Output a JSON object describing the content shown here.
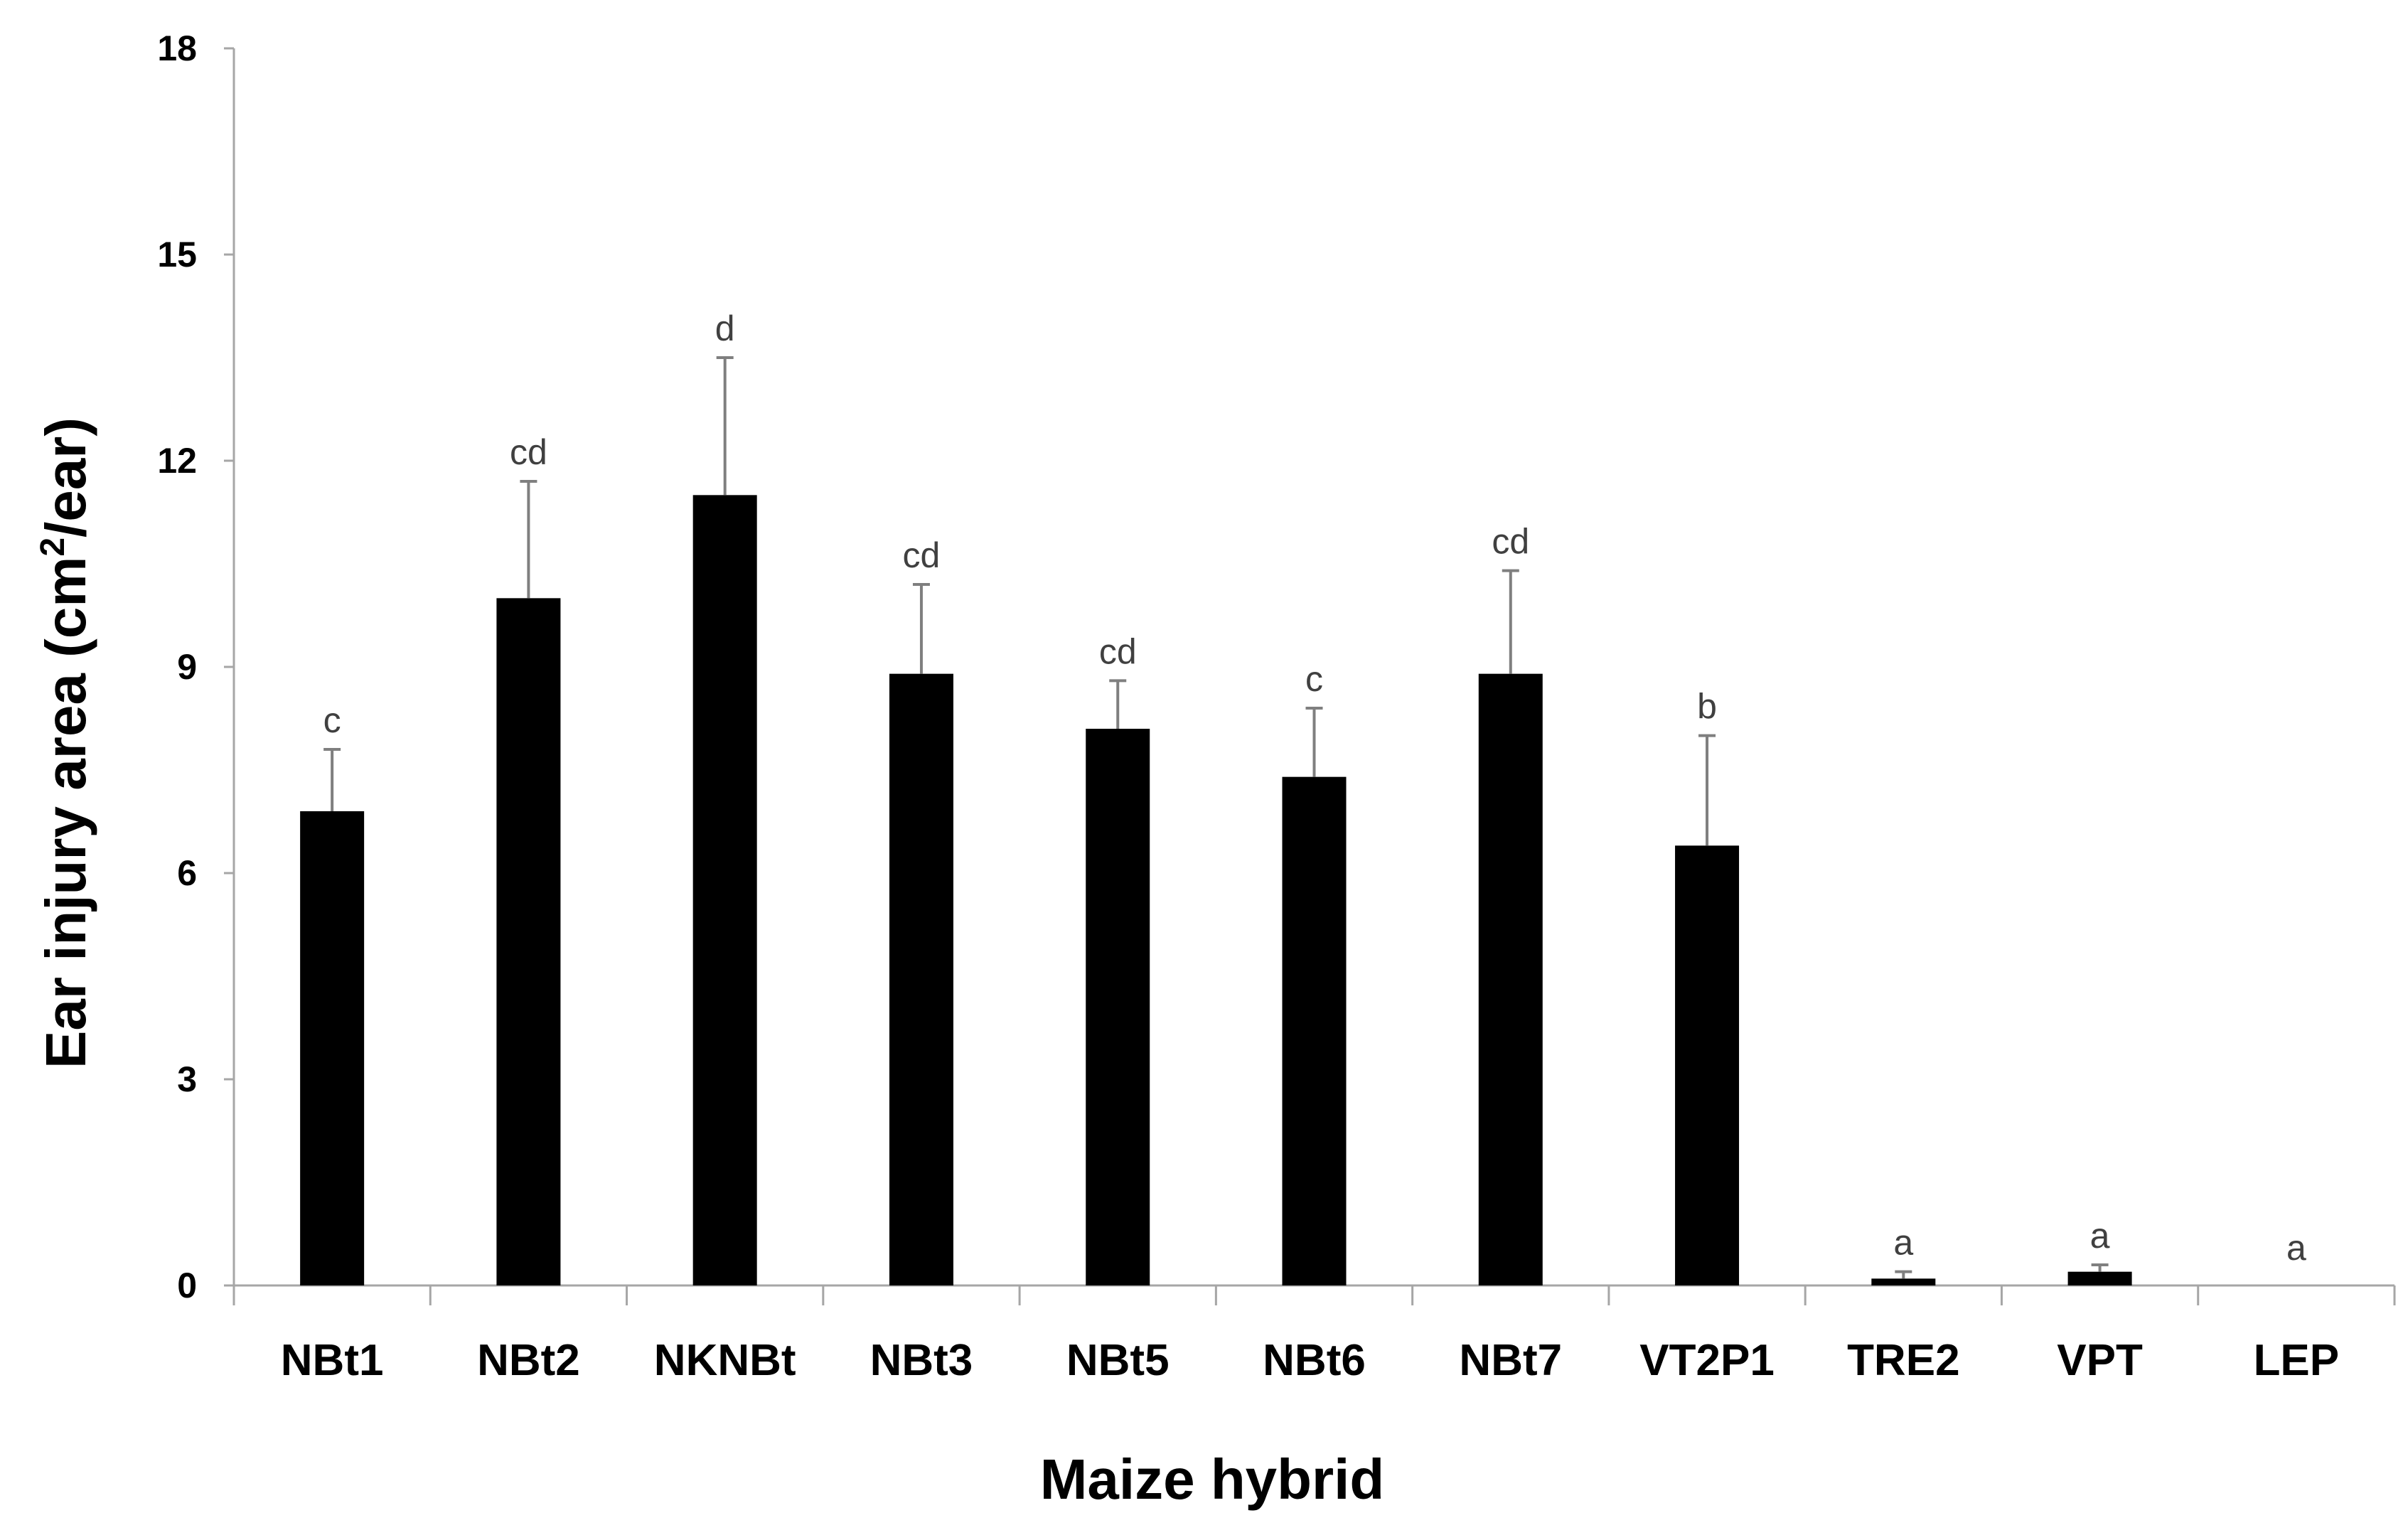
{
  "chart_data": {
    "type": "bar",
    "title": "",
    "xlabel": "Maize hybrid",
    "ylabel": {
      "prefix": "Ear injury area (cm",
      "superscript": "2",
      "suffix": "/ear)"
    },
    "ylim": [
      0,
      18
    ],
    "yticks": [
      0,
      3,
      6,
      9,
      12,
      15,
      18
    ],
    "categories": [
      "NBt1",
      "NBt2",
      "NKNBt",
      "NBt3",
      "NBt5",
      "NBt6",
      "NBt7",
      "VT2P1",
      "TRE2",
      "VPT",
      "LEP"
    ],
    "series": [
      {
        "name": "Ear injury area",
        "color": "#000000",
        "values": [
          6.9,
          10.0,
          11.5,
          8.9,
          8.1,
          7.4,
          8.9,
          6.4,
          0.1,
          0.2,
          0.0
        ],
        "error_upper": [
          7.8,
          11.7,
          13.5,
          10.2,
          8.8,
          8.4,
          10.4,
          8.0,
          0.2,
          0.3,
          null
        ]
      }
    ],
    "significance_letters": [
      "c",
      "cd",
      "d",
      "cd",
      "cd",
      "c",
      "cd",
      "b",
      "a",
      "a",
      "a"
    ],
    "grid": false,
    "legend": "none"
  },
  "colors": {
    "bar": "#000000",
    "axis": "#a6a6a6",
    "error_bar": "#7f7f7f",
    "significance_text": "#404040"
  }
}
